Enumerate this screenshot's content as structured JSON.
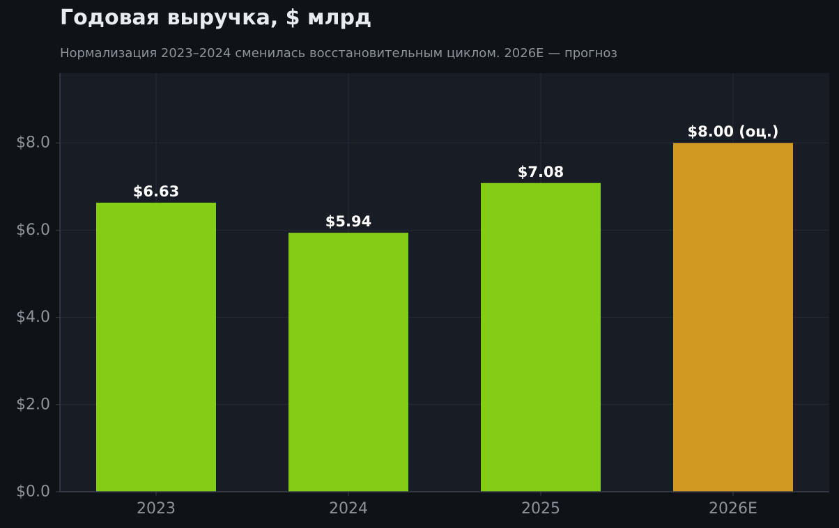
{
  "header": {
    "title": "Годовая выручка, $ млрд",
    "subtitle": "Нормализация 2023–2024 сменилась восстановительным циклом. 2026E — прогноз"
  },
  "colors": {
    "background": "#0f1317",
    "plot_background": "#181c24",
    "grid": "#262b35",
    "axis": "#3a3f48",
    "actual_bar": "#84cc16",
    "estimate_bar": "#d29922",
    "tick_text": "#8e949c",
    "value_text": "#ffffff"
  },
  "chart_data": {
    "type": "bar",
    "title": "Годовая выручка, $ млрд",
    "subtitle": "Нормализация 2023–2024 сменилась восстановительным циклом. 2026E — прогноз",
    "xlabel": "",
    "ylabel": "",
    "categories": [
      "2023",
      "2024",
      "2025",
      "2026E"
    ],
    "values": [
      6.63,
      5.94,
      7.08,
      8.0
    ],
    "value_labels": [
      "$6.63",
      "$5.94",
      "$7.08",
      "$8.00 (оц.)"
    ],
    "bar_kind": [
      "actual",
      "actual",
      "actual",
      "estimate"
    ],
    "ylim": [
      0,
      9.6
    ],
    "yticks": [
      0,
      2,
      4,
      6,
      8
    ],
    "ytick_labels": [
      "$0.0",
      "$2.0",
      "$4.0",
      "$6.0",
      "$8.0"
    ],
    "grid": true,
    "legend": "none"
  }
}
